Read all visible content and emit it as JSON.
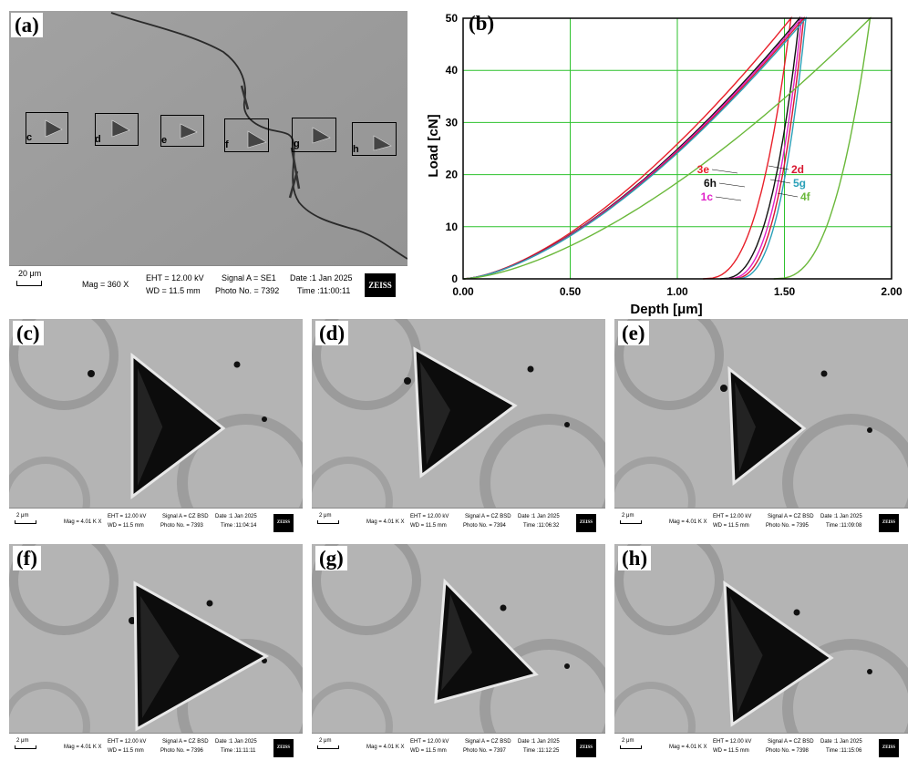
{
  "panel_a": {
    "label": "(a)",
    "scale": "20 μm",
    "mag": "Mag =   360 X",
    "eht": "EHT = 12.00 kV",
    "wd": "WD = 11.5 mm",
    "signal": "Signal A = SE1",
    "photo": "Photo No. = 7392",
    "date": "Date :1 Jan 2025",
    "time": "Time :11:00:11",
    "logo": "ZEISS",
    "indent_labels": [
      "c",
      "d",
      "e",
      "f",
      "g",
      "h"
    ]
  },
  "panel_b": {
    "label": "(b)",
    "chart_data": {
      "type": "line",
      "xlabel": "Depth [μm]",
      "ylabel": "Load [cN]",
      "xlim": [
        0,
        2.0
      ],
      "ylim": [
        0,
        50
      ],
      "xticks": [
        "0.00",
        "0.50",
        "1.00",
        "1.50",
        "2.00"
      ],
      "yticks": [
        "0",
        "10",
        "20",
        "30",
        "40",
        "50"
      ],
      "grid": true,
      "series": [
        {
          "name": "3e",
          "color": "#e8202a",
          "max_depth": 1.53,
          "residual_depth": 1.12,
          "unload_knee": 1.4
        },
        {
          "name": "6h",
          "color": "#111111",
          "max_depth": 1.57,
          "residual_depth": 1.2,
          "unload_knee": 1.46
        },
        {
          "name": "1c",
          "color": "#e020c8",
          "max_depth": 1.58,
          "residual_depth": 1.23,
          "unload_knee": 1.48
        },
        {
          "name": "2d",
          "color": "#d81830",
          "max_depth": 1.59,
          "residual_depth": 1.25,
          "unload_knee": 1.49
        },
        {
          "name": "5g",
          "color": "#2aa0b8",
          "max_depth": 1.6,
          "residual_depth": 1.27,
          "unload_knee": 1.5
        },
        {
          "name": "4f",
          "color": "#6ab83a",
          "max_depth": 1.9,
          "residual_depth": 1.45,
          "unload_knee": 1.7
        }
      ]
    }
  },
  "sem_panels": [
    {
      "label": "(c)",
      "scale": "2 μm",
      "mag": "Mag =  4.01 K X",
      "eht": "EHT = 12.00 kV",
      "wd": "WD = 11.5 mm",
      "signal": "Signal A = CZ BSD",
      "photo": "Photo No. = 7393",
      "date": "Date :1 Jan 2025",
      "time": "Time :11:04:14",
      "logo": "ZEISS"
    },
    {
      "label": "(d)",
      "scale": "2 μm",
      "mag": "Mag =  4.01 K X",
      "eht": "EHT = 12.00 kV",
      "wd": "WD = 11.5 mm",
      "signal": "Signal A = CZ BSD",
      "photo": "Photo No. = 7394",
      "date": "Date :1 Jan 2025",
      "time": "Time :11:06:32",
      "logo": "ZEISS"
    },
    {
      "label": "(e)",
      "scale": "2 μm",
      "mag": "Mag =  4.01 K X",
      "eht": "EHT = 12.00 kV",
      "wd": "WD = 11.5 mm",
      "signal": "Signal A = CZ BSD",
      "photo": "Photo No. = 7395",
      "date": "Date :1 Jan 2025",
      "time": "Time :11:09:08",
      "logo": "ZEISS"
    },
    {
      "label": "(f)",
      "scale": "2 μm",
      "mag": "Mag =  4.01 K X",
      "eht": "EHT = 12.00 kV",
      "wd": "WD = 11.5 mm",
      "signal": "Signal A = CZ BSD",
      "photo": "Photo No. = 7396",
      "date": "Date :1 Jan 2025",
      "time": "Time :11:11:11",
      "logo": "ZEISS"
    },
    {
      "label": "(g)",
      "scale": "2 μm",
      "mag": "Mag =  4.01 K X",
      "eht": "EHT = 12.00 kV",
      "wd": "WD = 11.5 mm",
      "signal": "Signal A = CZ BSD",
      "photo": "Photo No. = 7397",
      "date": "Date :1 Jan 2025",
      "time": "Time :11:12:25",
      "logo": "ZEISS"
    },
    {
      "label": "(h)",
      "scale": "2 μm",
      "mag": "Mag =  4.01 K X",
      "eht": "EHT = 12.00 kV",
      "wd": "WD = 11.5 mm",
      "signal": "Signal A = CZ BSD",
      "photo": "Photo No. = 7398",
      "date": "Date :1 Jan 2025",
      "time": "Time :11:15:06",
      "logo": "ZEISS"
    }
  ]
}
